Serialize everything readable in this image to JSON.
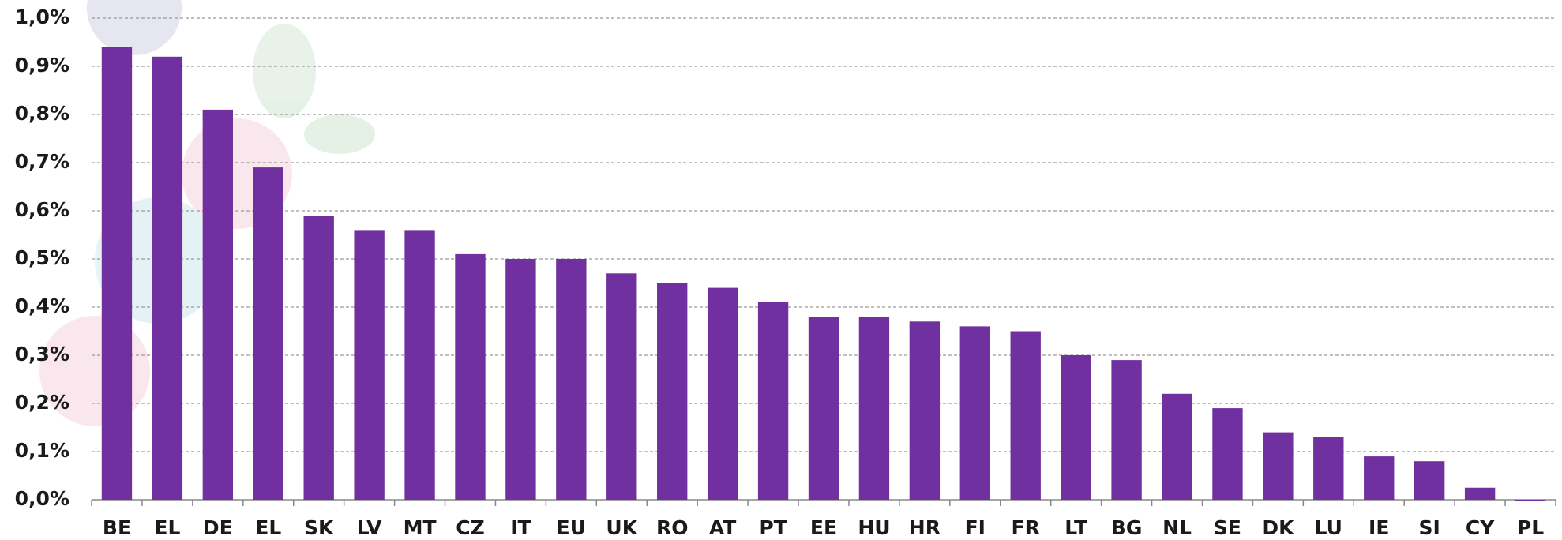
{
  "chart_data": {
    "type": "bar",
    "categories": [
      "BE",
      "EL",
      "DE",
      "EL",
      "SK",
      "LV",
      "MT",
      "CZ",
      "IT",
      "EU",
      "UK",
      "RO",
      "AT",
      "PT",
      "EE",
      "HU",
      "HR",
      "FI",
      "FR",
      "LT",
      "BG",
      "NL",
      "SE",
      "DK",
      "LU",
      "IE",
      "SI",
      "CY",
      "PL"
    ],
    "values": [
      0.94,
      0.92,
      0.81,
      0.69,
      0.59,
      0.56,
      0.56,
      0.51,
      0.5,
      0.5,
      0.47,
      0.45,
      0.44,
      0.41,
      0.38,
      0.38,
      0.37,
      0.36,
      0.35,
      0.3,
      0.29,
      0.22,
      0.19,
      0.14,
      0.13,
      0.09,
      0.08,
      0.025,
      -0.003
    ],
    "color": "#7030a0",
    "ylim": [
      0,
      1.0
    ],
    "yticks": [
      {
        "value": 0,
        "label": "0,0%"
      },
      {
        "value": 0.1,
        "label": "0,1%"
      },
      {
        "value": 0.2,
        "label": "0,2%"
      },
      {
        "value": 0.3,
        "label": "0,3%"
      },
      {
        "value": 0.4,
        "label": "0,4%"
      },
      {
        "value": 0.5,
        "label": "0,5%"
      },
      {
        "value": 0.6,
        "label": "0,6%"
      },
      {
        "value": 0.7,
        "label": "0,7%"
      },
      {
        "value": 0.8,
        "label": "0,8%"
      },
      {
        "value": 0.9,
        "label": "0,9%"
      },
      {
        "value": 1.0,
        "label": "1,0%"
      }
    ],
    "grid": true
  }
}
